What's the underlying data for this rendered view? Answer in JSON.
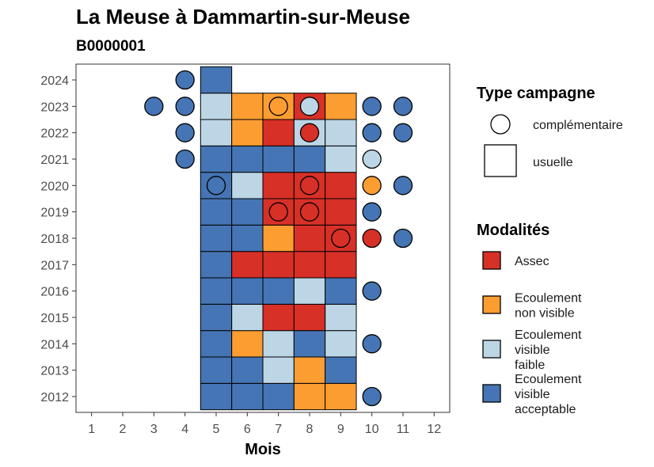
{
  "chart_data": {
    "type": "heatmap",
    "title": "La Meuse à Dammartin-sur-Meuse",
    "subtitle": "B0000001",
    "xlabel": "Mois",
    "ylabel": "",
    "x_ticks": [
      1,
      2,
      3,
      4,
      5,
      6,
      7,
      8,
      9,
      10,
      11,
      12
    ],
    "y_ticks": [
      2012,
      2013,
      2014,
      2015,
      2016,
      2017,
      2018,
      2019,
      2020,
      2021,
      2022,
      2023,
      2024
    ],
    "xlim": [
      0.5,
      12.5
    ],
    "ylim": [
      2011.4,
      2024.6
    ],
    "grid": false,
    "colors": {
      "Assec": "#d73027",
      "Ecoulement non visible": "#fc9d32",
      "Ecoulement visible faible": "#bcd6e6",
      "Ecoulement visible acceptable": "#4575b4"
    },
    "legend": {
      "shape_title": "Type campagne",
      "shape_items": [
        {
          "label": "complémentaire",
          "shape": "circle"
        },
        {
          "label": "usuelle",
          "shape": "square"
        }
      ],
      "color_title": "Modalités",
      "color_items": [
        {
          "key": "Assec",
          "lines": [
            "Assec"
          ]
        },
        {
          "key": "Ecoulement non visible",
          "lines": [
            "Ecoulement",
            "non visible"
          ]
        },
        {
          "key": "Ecoulement visible faible",
          "lines": [
            "Ecoulement",
            "visible",
            "faible"
          ]
        },
        {
          "key": "Ecoulement visible acceptable",
          "lines": [
            "Ecoulement",
            "visible",
            "acceptable"
          ]
        }
      ],
      "position": "right"
    },
    "usuelle": [
      {
        "year": 2012,
        "month": 5,
        "modalite": "Ecoulement visible acceptable"
      },
      {
        "year": 2012,
        "month": 6,
        "modalite": "Ecoulement visible acceptable"
      },
      {
        "year": 2012,
        "month": 7,
        "modalite": "Ecoulement visible acceptable"
      },
      {
        "year": 2012,
        "month": 8,
        "modalite": "Ecoulement non visible"
      },
      {
        "year": 2012,
        "month": 9,
        "modalite": "Ecoulement non visible"
      },
      {
        "year": 2013,
        "month": 5,
        "modalite": "Ecoulement visible acceptable"
      },
      {
        "year": 2013,
        "month": 6,
        "modalite": "Ecoulement visible acceptable"
      },
      {
        "year": 2013,
        "month": 7,
        "modalite": "Ecoulement visible faible"
      },
      {
        "year": 2013,
        "month": 8,
        "modalite": "Ecoulement non visible"
      },
      {
        "year": 2013,
        "month": 9,
        "modalite": "Ecoulement visible acceptable"
      },
      {
        "year": 2014,
        "month": 5,
        "modalite": "Ecoulement visible acceptable"
      },
      {
        "year": 2014,
        "month": 6,
        "modalite": "Ecoulement non visible"
      },
      {
        "year": 2014,
        "month": 7,
        "modalite": "Ecoulement visible faible"
      },
      {
        "year": 2014,
        "month": 8,
        "modalite": "Ecoulement visible acceptable"
      },
      {
        "year": 2014,
        "month": 9,
        "modalite": "Ecoulement visible faible"
      },
      {
        "year": 2015,
        "month": 5,
        "modalite": "Ecoulement visible acceptable"
      },
      {
        "year": 2015,
        "month": 6,
        "modalite": "Ecoulement visible faible"
      },
      {
        "year": 2015,
        "month": 7,
        "modalite": "Assec"
      },
      {
        "year": 2015,
        "month": 8,
        "modalite": "Assec"
      },
      {
        "year": 2015,
        "month": 9,
        "modalite": "Ecoulement visible faible"
      },
      {
        "year": 2016,
        "month": 5,
        "modalite": "Ecoulement visible acceptable"
      },
      {
        "year": 2016,
        "month": 6,
        "modalite": "Ecoulement visible acceptable"
      },
      {
        "year": 2016,
        "month": 7,
        "modalite": "Ecoulement visible acceptable"
      },
      {
        "year": 2016,
        "month": 8,
        "modalite": "Ecoulement visible faible"
      },
      {
        "year": 2016,
        "month": 9,
        "modalite": "Ecoulement visible acceptable"
      },
      {
        "year": 2017,
        "month": 5,
        "modalite": "Ecoulement visible acceptable"
      },
      {
        "year": 2017,
        "month": 6,
        "modalite": "Assec"
      },
      {
        "year": 2017,
        "month": 7,
        "modalite": "Assec"
      },
      {
        "year": 2017,
        "month": 8,
        "modalite": "Assec"
      },
      {
        "year": 2017,
        "month": 9,
        "modalite": "Assec"
      },
      {
        "year": 2018,
        "month": 5,
        "modalite": "Ecoulement visible acceptable"
      },
      {
        "year": 2018,
        "month": 6,
        "modalite": "Ecoulement visible acceptable"
      },
      {
        "year": 2018,
        "month": 7,
        "modalite": "Ecoulement non visible"
      },
      {
        "year": 2018,
        "month": 8,
        "modalite": "Assec"
      },
      {
        "year": 2018,
        "month": 9,
        "modalite": "Assec"
      },
      {
        "year": 2019,
        "month": 5,
        "modalite": "Ecoulement visible acceptable"
      },
      {
        "year": 2019,
        "month": 6,
        "modalite": "Ecoulement visible acceptable"
      },
      {
        "year": 2019,
        "month": 7,
        "modalite": "Assec"
      },
      {
        "year": 2019,
        "month": 8,
        "modalite": "Assec"
      },
      {
        "year": 2019,
        "month": 9,
        "modalite": "Assec"
      },
      {
        "year": 2020,
        "month": 5,
        "modalite": "Ecoulement visible acceptable"
      },
      {
        "year": 2020,
        "month": 6,
        "modalite": "Ecoulement visible faible"
      },
      {
        "year": 2020,
        "month": 7,
        "modalite": "Assec"
      },
      {
        "year": 2020,
        "month": 8,
        "modalite": "Assec"
      },
      {
        "year": 2020,
        "month": 9,
        "modalite": "Assec"
      },
      {
        "year": 2021,
        "month": 5,
        "modalite": "Ecoulement visible acceptable"
      },
      {
        "year": 2021,
        "month": 6,
        "modalite": "Ecoulement visible acceptable"
      },
      {
        "year": 2021,
        "month": 7,
        "modalite": "Ecoulement visible acceptable"
      },
      {
        "year": 2021,
        "month": 8,
        "modalite": "Ecoulement visible acceptable"
      },
      {
        "year": 2021,
        "month": 9,
        "modalite": "Ecoulement visible faible"
      },
      {
        "year": 2022,
        "month": 5,
        "modalite": "Ecoulement visible faible"
      },
      {
        "year": 2022,
        "month": 6,
        "modalite": "Ecoulement non visible"
      },
      {
        "year": 2022,
        "month": 7,
        "modalite": "Assec"
      },
      {
        "year": 2022,
        "month": 8,
        "modalite": "Ecoulement visible faible"
      },
      {
        "year": 2022,
        "month": 9,
        "modalite": "Ecoulement visible faible"
      },
      {
        "year": 2023,
        "month": 5,
        "modalite": "Ecoulement visible faible"
      },
      {
        "year": 2023,
        "month": 6,
        "modalite": "Ecoulement non visible"
      },
      {
        "year": 2023,
        "month": 7,
        "modalite": "Ecoulement non visible"
      },
      {
        "year": 2023,
        "month": 8,
        "modalite": "Assec"
      },
      {
        "year": 2023,
        "month": 9,
        "modalite": "Ecoulement non visible"
      },
      {
        "year": 2024,
        "month": 5,
        "modalite": "Ecoulement visible acceptable"
      }
    ],
    "complementaire": [
      {
        "year": 2012,
        "month": 10,
        "modalite": "Ecoulement visible acceptable"
      },
      {
        "year": 2014,
        "month": 10,
        "modalite": "Ecoulement visible acceptable"
      },
      {
        "year": 2016,
        "month": 10,
        "modalite": "Ecoulement visible acceptable"
      },
      {
        "year": 2018,
        "month": 9,
        "modalite": "Assec"
      },
      {
        "year": 2018,
        "month": 10,
        "modalite": "Assec"
      },
      {
        "year": 2018,
        "month": 11,
        "modalite": "Ecoulement visible acceptable"
      },
      {
        "year": 2019,
        "month": 7,
        "modalite": "Assec"
      },
      {
        "year": 2019,
        "month": 8,
        "modalite": "Assec"
      },
      {
        "year": 2019,
        "month": 10,
        "modalite": "Ecoulement visible acceptable"
      },
      {
        "year": 2020,
        "month": 5,
        "modalite": "Ecoulement visible acceptable"
      },
      {
        "year": 2020,
        "month": 8,
        "modalite": "Assec"
      },
      {
        "year": 2020,
        "month": 10,
        "modalite": "Ecoulement non visible"
      },
      {
        "year": 2020,
        "month": 11,
        "modalite": "Ecoulement visible acceptable"
      },
      {
        "year": 2021,
        "month": 4,
        "modalite": "Ecoulement visible acceptable"
      },
      {
        "year": 2021,
        "month": 10,
        "modalite": "Ecoulement visible faible"
      },
      {
        "year": 2022,
        "month": 4,
        "modalite": "Ecoulement visible acceptable"
      },
      {
        "year": 2022,
        "month": 8,
        "modalite": "Assec"
      },
      {
        "year": 2022,
        "month": 10,
        "modalite": "Ecoulement visible acceptable"
      },
      {
        "year": 2022,
        "month": 11,
        "modalite": "Ecoulement visible acceptable"
      },
      {
        "year": 2023,
        "month": 3,
        "modalite": "Ecoulement visible acceptable"
      },
      {
        "year": 2023,
        "month": 4,
        "modalite": "Ecoulement visible acceptable"
      },
      {
        "year": 2023,
        "month": 7,
        "modalite": "Ecoulement non visible"
      },
      {
        "year": 2023,
        "month": 8,
        "modalite": "Ecoulement visible faible"
      },
      {
        "year": 2023,
        "month": 10,
        "modalite": "Ecoulement visible acceptable"
      },
      {
        "year": 2023,
        "month": 11,
        "modalite": "Ecoulement visible acceptable"
      },
      {
        "year": 2024,
        "month": 4,
        "modalite": "Ecoulement visible acceptable"
      }
    ]
  }
}
